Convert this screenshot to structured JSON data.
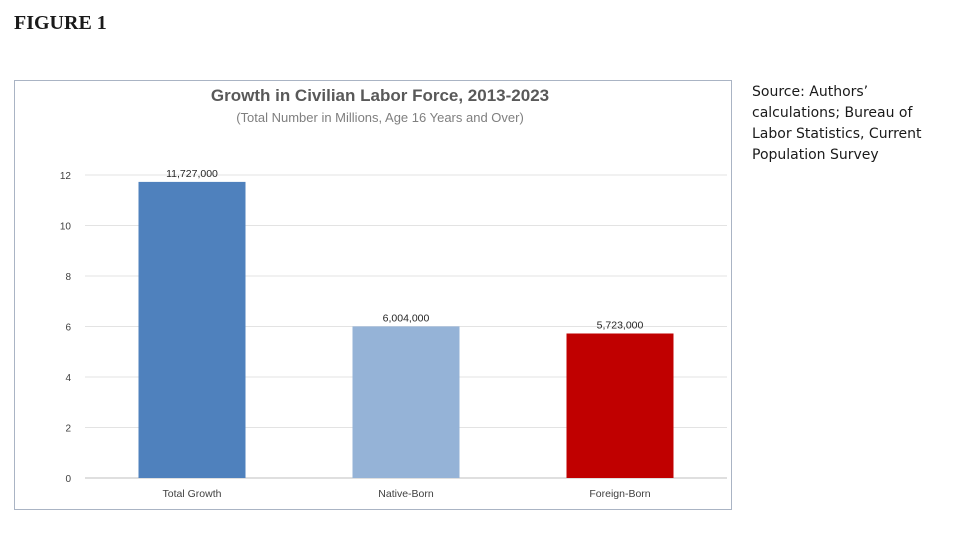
{
  "figure_label": "FIGURE 1",
  "source_note": "Source: Authors’ calculations; Bureau of Labor Statistics, Current Population Survey",
  "chart_data": {
    "type": "bar",
    "title": "Growth in Civilian Labor Force, 2013-2023",
    "subtitle": "(Total Number in Millions, Age 16 Years and Over)",
    "xlabel": "",
    "ylabel": "",
    "categories": [
      "Total Growth",
      "Native-Born",
      "Foreign-Born"
    ],
    "values": [
      11.727,
      6.004,
      5.723
    ],
    "data_labels": [
      "11,727,000",
      "6,004,000",
      "5,723,000"
    ],
    "bar_colors": [
      "#4f81bd",
      "#95b3d7",
      "#c00000"
    ],
    "ylim": [
      0,
      12
    ],
    "yticks": [
      0,
      2,
      4,
      6,
      8,
      10,
      12
    ],
    "grid": true,
    "legend": "none"
  }
}
